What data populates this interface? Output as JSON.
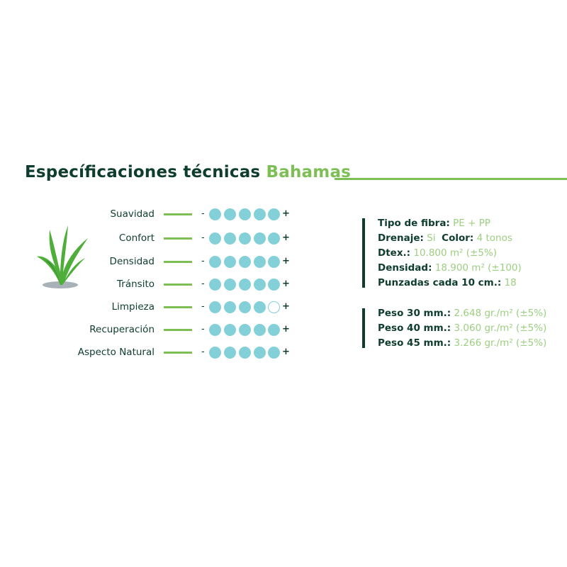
{
  "title": {
    "main": "Especíﬁcaciones técnicas",
    "product": "Bahamas"
  },
  "colors": {
    "dark_green": "#0e3d2d",
    "light_green": "#7dbf54",
    "dot_teal": "#84d0d8",
    "value_green": "#9ccf80"
  },
  "icon": "grass-plant-icon",
  "ratings": {
    "min_symbol": "-",
    "max_symbol": "+",
    "max": 5,
    "items": [
      {
        "label": "Suavidad",
        "value": 5
      },
      {
        "label": "Confort",
        "value": 5
      },
      {
        "label": "Densidad",
        "value": 5
      },
      {
        "label": "Tránsito",
        "value": 5
      },
      {
        "label": "Limpieza",
        "value": 4
      },
      {
        "label": "Recuperación",
        "value": 5
      },
      {
        "label": "Aspecto Natural",
        "value": 5
      }
    ]
  },
  "specs": [
    {
      "label": "Tipo de fibra:",
      "value": "PE + PP"
    },
    {
      "label": "Drenaje:",
      "value": "Si",
      "label2": "Color:",
      "value2": "4 tonos"
    },
    {
      "label": "Dtex.:",
      "value": "10.800 m² (±5%)"
    },
    {
      "label": "Densidad:",
      "value": "18.900 m² (±100)"
    },
    {
      "label": "Punzadas cada 10 cm.:",
      "value": "18"
    }
  ],
  "weights": [
    {
      "label": "Peso 30 mm.:",
      "value": "2.648 gr./m² (±5%)"
    },
    {
      "label": "Peso 40 mm.:",
      "value": "3.060 gr./m² (±5%)"
    },
    {
      "label": "Peso 45 mm.:",
      "value": "3.266 gr./m² (±5%)"
    }
  ]
}
